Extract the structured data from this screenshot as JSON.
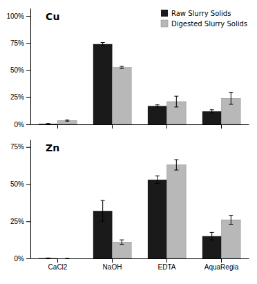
{
  "chart_data": [
    {
      "type": "bar",
      "title": "Cu",
      "categories": [
        "CaCl2",
        "NaOH",
        "EDTA",
        "AquaRegia"
      ],
      "series": [
        {
          "name": "Raw Slurry Solids",
          "color": "#1a1a1a",
          "values": [
            0.5,
            74.0,
            17.0,
            12.0
          ],
          "errors": [
            0.3,
            1.5,
            1.0,
            1.5
          ]
        },
        {
          "name": "Digested Slurry Solids",
          "color": "#b8b8b8",
          "values": [
            3.5,
            52.5,
            21.0,
            24.0
          ],
          "errors": [
            0.5,
            1.0,
            5.0,
            5.5
          ]
        }
      ],
      "ylim": [
        0,
        107
      ],
      "yticks": [
        {
          "value": 0,
          "label": "0%"
        },
        {
          "value": 25,
          "label": "25%"
        },
        {
          "value": 50,
          "label": "50%"
        },
        {
          "value": 75,
          "label": "75%"
        },
        {
          "value": 100,
          "label": "100%"
        }
      ],
      "legend": "upper right",
      "tick_labels": "y"
    },
    {
      "type": "bar",
      "title": "Zn",
      "categories": [
        "CaCl2",
        "NaOH",
        "EDTA",
        "AquaRegia"
      ],
      "series": [
        {
          "color": "#1a1a1a",
          "values": [
            0.2,
            32.0,
            53.0,
            15.0
          ],
          "errors": [
            0.1,
            7.0,
            2.5,
            2.5
          ]
        },
        {
          "color": "#b8b8b8",
          "values": [
            0.0,
            11.0,
            63.0,
            26.0
          ],
          "errors": [
            0.0,
            1.5,
            3.5,
            3.0
          ]
        }
      ],
      "ylim": [
        0,
        80
      ],
      "yticks": [
        {
          "value": 0,
          "label": "0%"
        },
        {
          "value": 25,
          "label": "25%"
        },
        {
          "value": 50,
          "label": "50%"
        },
        {
          "value": 75,
          "label": "75%"
        }
      ]
    }
  ]
}
